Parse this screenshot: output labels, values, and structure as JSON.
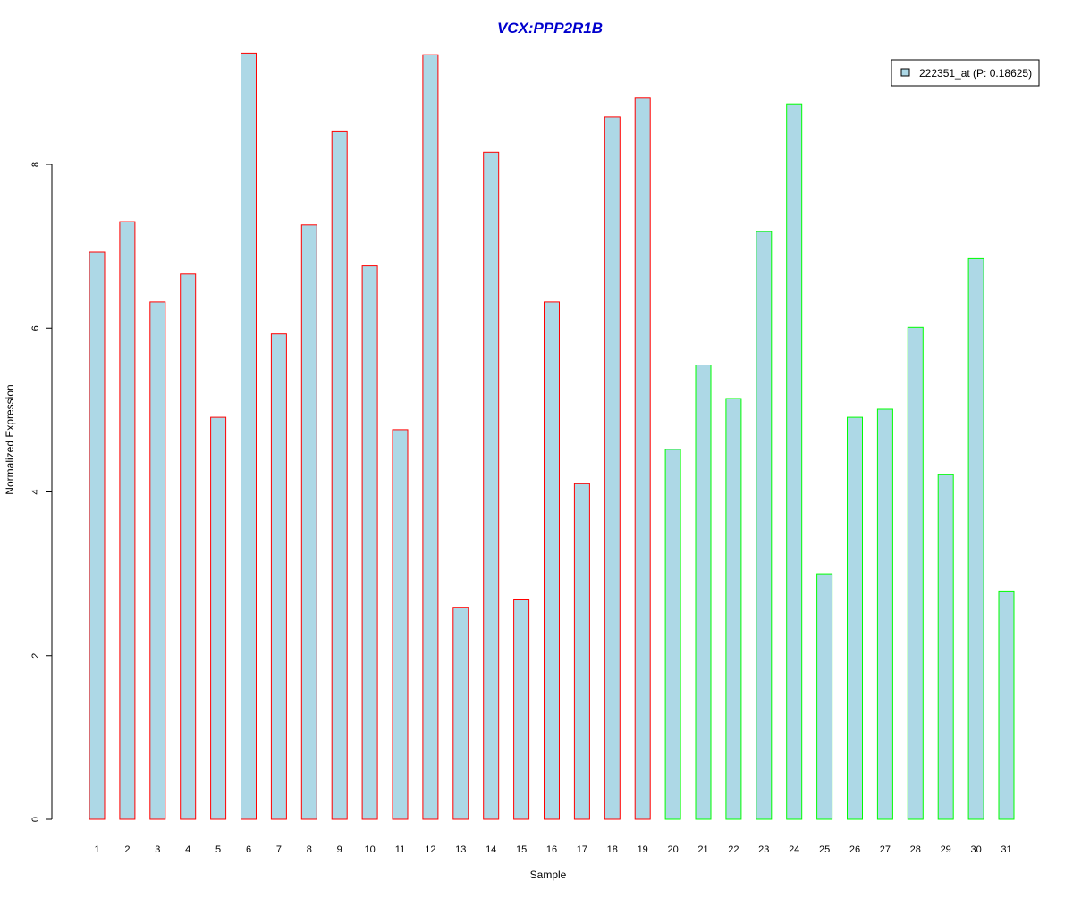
{
  "chart_data": {
    "type": "bar",
    "title": "VCX:PPP2R1B",
    "xlabel": "Sample",
    "ylabel": "Normalized Expression",
    "categories": [
      "1",
      "2",
      "3",
      "4",
      "5",
      "6",
      "7",
      "8",
      "9",
      "10",
      "11",
      "12",
      "13",
      "14",
      "15",
      "16",
      "17",
      "18",
      "19",
      "20",
      "21",
      "22",
      "23",
      "24",
      "25",
      "26",
      "27",
      "28",
      "29",
      "30",
      "31"
    ],
    "values": [
      6.93,
      7.3,
      6.32,
      6.66,
      4.91,
      9.36,
      5.93,
      7.26,
      8.4,
      6.76,
      4.76,
      9.34,
      2.59,
      8.15,
      2.69,
      6.32,
      4.1,
      8.58,
      8.81,
      4.52,
      5.55,
      5.14,
      7.18,
      8.74,
      3.0,
      4.91,
      5.01,
      6.01,
      4.21,
      6.85,
      2.79
    ],
    "groups": [
      "red",
      "red",
      "red",
      "red",
      "red",
      "red",
      "red",
      "red",
      "red",
      "red",
      "red",
      "red",
      "red",
      "red",
      "red",
      "red",
      "red",
      "red",
      "red",
      "green",
      "green",
      "green",
      "green",
      "green",
      "green",
      "green",
      "green",
      "green",
      "green",
      "green",
      "green"
    ],
    "yticks": [
      "0",
      "2",
      "4",
      "6",
      "8"
    ],
    "ylim": [
      0,
      9.5
    ],
    "grid": false,
    "legend": {
      "placement": "top-right",
      "label": "222351_at (P: 0.18625)"
    },
    "colors": {
      "bar_fill": "#add8e6",
      "group_red": "#ff0000",
      "group_green": "#00ff00",
      "title": "#0000cd",
      "axis": "#000000"
    }
  }
}
